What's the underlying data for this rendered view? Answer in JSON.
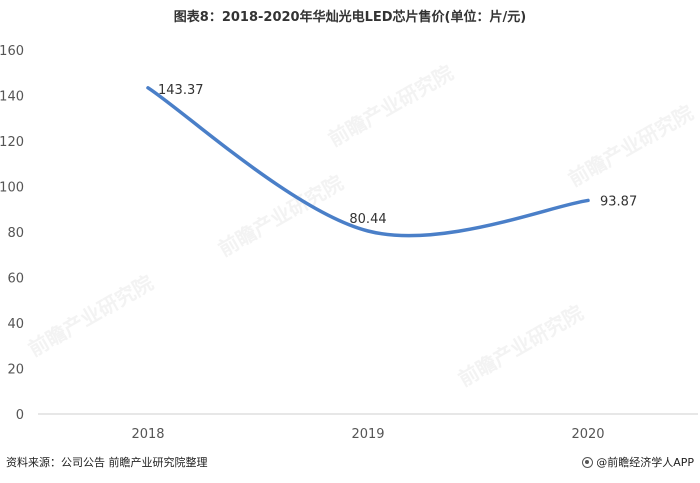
{
  "title": "图表8：2018-2020年华灿光电LED芯片售价(单位：片/元)",
  "source": "资料来源：公司公告 前瞻产业研究院整理",
  "brand": "@前瞻经济学人APP",
  "watermark_text": "前瞻产业研究院",
  "colors": {
    "line": "#4a7fc8",
    "axis": "#cfcfcf",
    "tick_text": "#555555",
    "label_text": "#333333"
  },
  "chart_data": {
    "type": "line",
    "title": "图表8：2018-2020年华灿光电LED芯片售价(单位：片/元)",
    "xlabel": "",
    "ylabel": "",
    "categories": [
      "2018",
      "2019",
      "2020"
    ],
    "series": [
      {
        "values": [
          143.37,
          80.44,
          93.87
        ],
        "labels": [
          "143.37",
          "80.44",
          "93.87"
        ]
      }
    ],
    "ylim": [
      0,
      160
    ],
    "yticks": [
      "0",
      "20",
      "40",
      "60",
      "80",
      "100",
      "120",
      "140",
      "160"
    ],
    "grid": false,
    "smooth": true
  }
}
